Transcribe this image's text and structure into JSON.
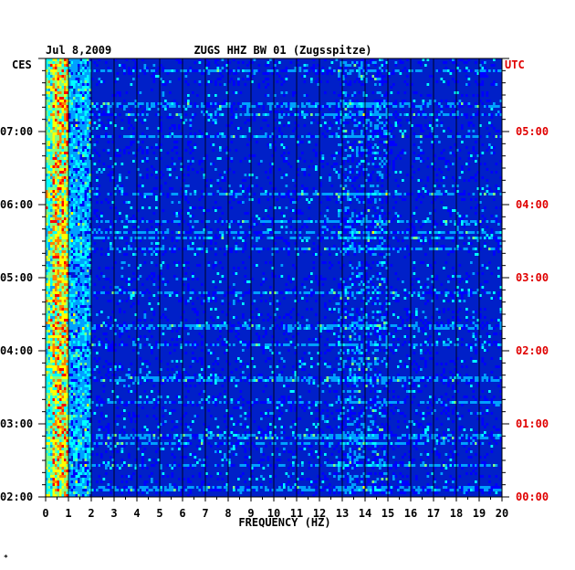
{
  "header": {
    "date": "Jul 8,2009",
    "station": "ZUGS HHZ BW 01 (Zugsspitze)"
  },
  "left_tz": "CES",
  "right_tz": "UTC",
  "xlabel": "FREQUENCY (HZ)",
  "corner_mark": "*",
  "colors": {
    "utc_text": "#e00000",
    "local_text": "#000000",
    "background_field": "#0020c8",
    "grid": "#000000"
  },
  "chart_data": {
    "type": "heatmap",
    "title": "ZUGS HHZ BW 01 (Zugsspitze)",
    "xlabel": "FREQUENCY (HZ)",
    "xlim": [
      0,
      20
    ],
    "x_ticks": [
      "0",
      "1",
      "2",
      "3",
      "4",
      "5",
      "6",
      "7",
      "8",
      "9",
      "10",
      "11",
      "12",
      "13",
      "14",
      "15",
      "16",
      "17",
      "18",
      "19",
      "20"
    ],
    "time_span_hours": [
      0,
      6
    ],
    "left_ticks": [
      "07:00",
      "06:00",
      "05:00",
      "04:00",
      "03:00",
      "02:00"
    ],
    "right_ticks": [
      "05:00",
      "04:00",
      "03:00",
      "02:00",
      "01:00",
      "00:00"
    ],
    "colormap": [
      "#000080",
      "#0000ff",
      "#00a0ff",
      "#00ffff",
      "#80ff80",
      "#ffff00",
      "#ff8000",
      "#ff0000"
    ],
    "note_energy": "strongest energy below 1 Hz; secondary bands near 13–15 Hz"
  }
}
